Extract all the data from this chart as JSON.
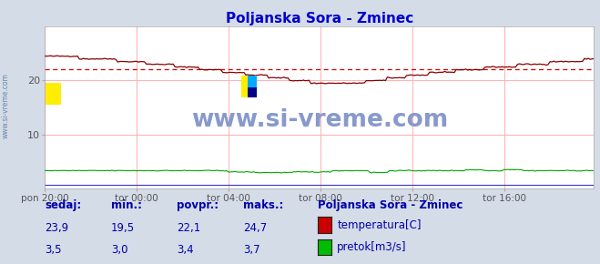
{
  "title": "Poljanska Sora - Zminec",
  "title_color": "#0000cc",
  "bg_color": "#d4dce8",
  "plot_bg_color": "#ffffff",
  "grid_color_v": "#ffb0b0",
  "grid_color_h": "#ffb0b0",
  "watermark_text": "www.si-vreme.com",
  "watermark_color": "#8899cc",
  "x_tick_labels": [
    "pon 20:00",
    "tor 00:00",
    "tor 04:00",
    "tor 08:00",
    "tor 12:00",
    "tor 16:00"
  ],
  "x_tick_positions": [
    0,
    48,
    96,
    144,
    192,
    240
  ],
  "ylim": [
    0,
    30
  ],
  "y_ticks": [
    10,
    20
  ],
  "temp_avg": 22.1,
  "temp_min": 19.5,
  "temp_max": 24.7,
  "temp_current": 23.9,
  "flow_avg": 3.4,
  "flow_min": 3.0,
  "flow_max": 3.7,
  "flow_current": 3.5,
  "legend_title": "Poljanska Sora - Zminec",
  "legend_entries": [
    "temperatura[C]",
    "pretok[m3/s]"
  ],
  "legend_colors": [
    "#cc0000",
    "#00bb00"
  ],
  "table_labels": [
    "sedaj:",
    "min.:",
    "povpr.:",
    "maks.:"
  ],
  "table_color": "#0000aa",
  "n_points": 288
}
